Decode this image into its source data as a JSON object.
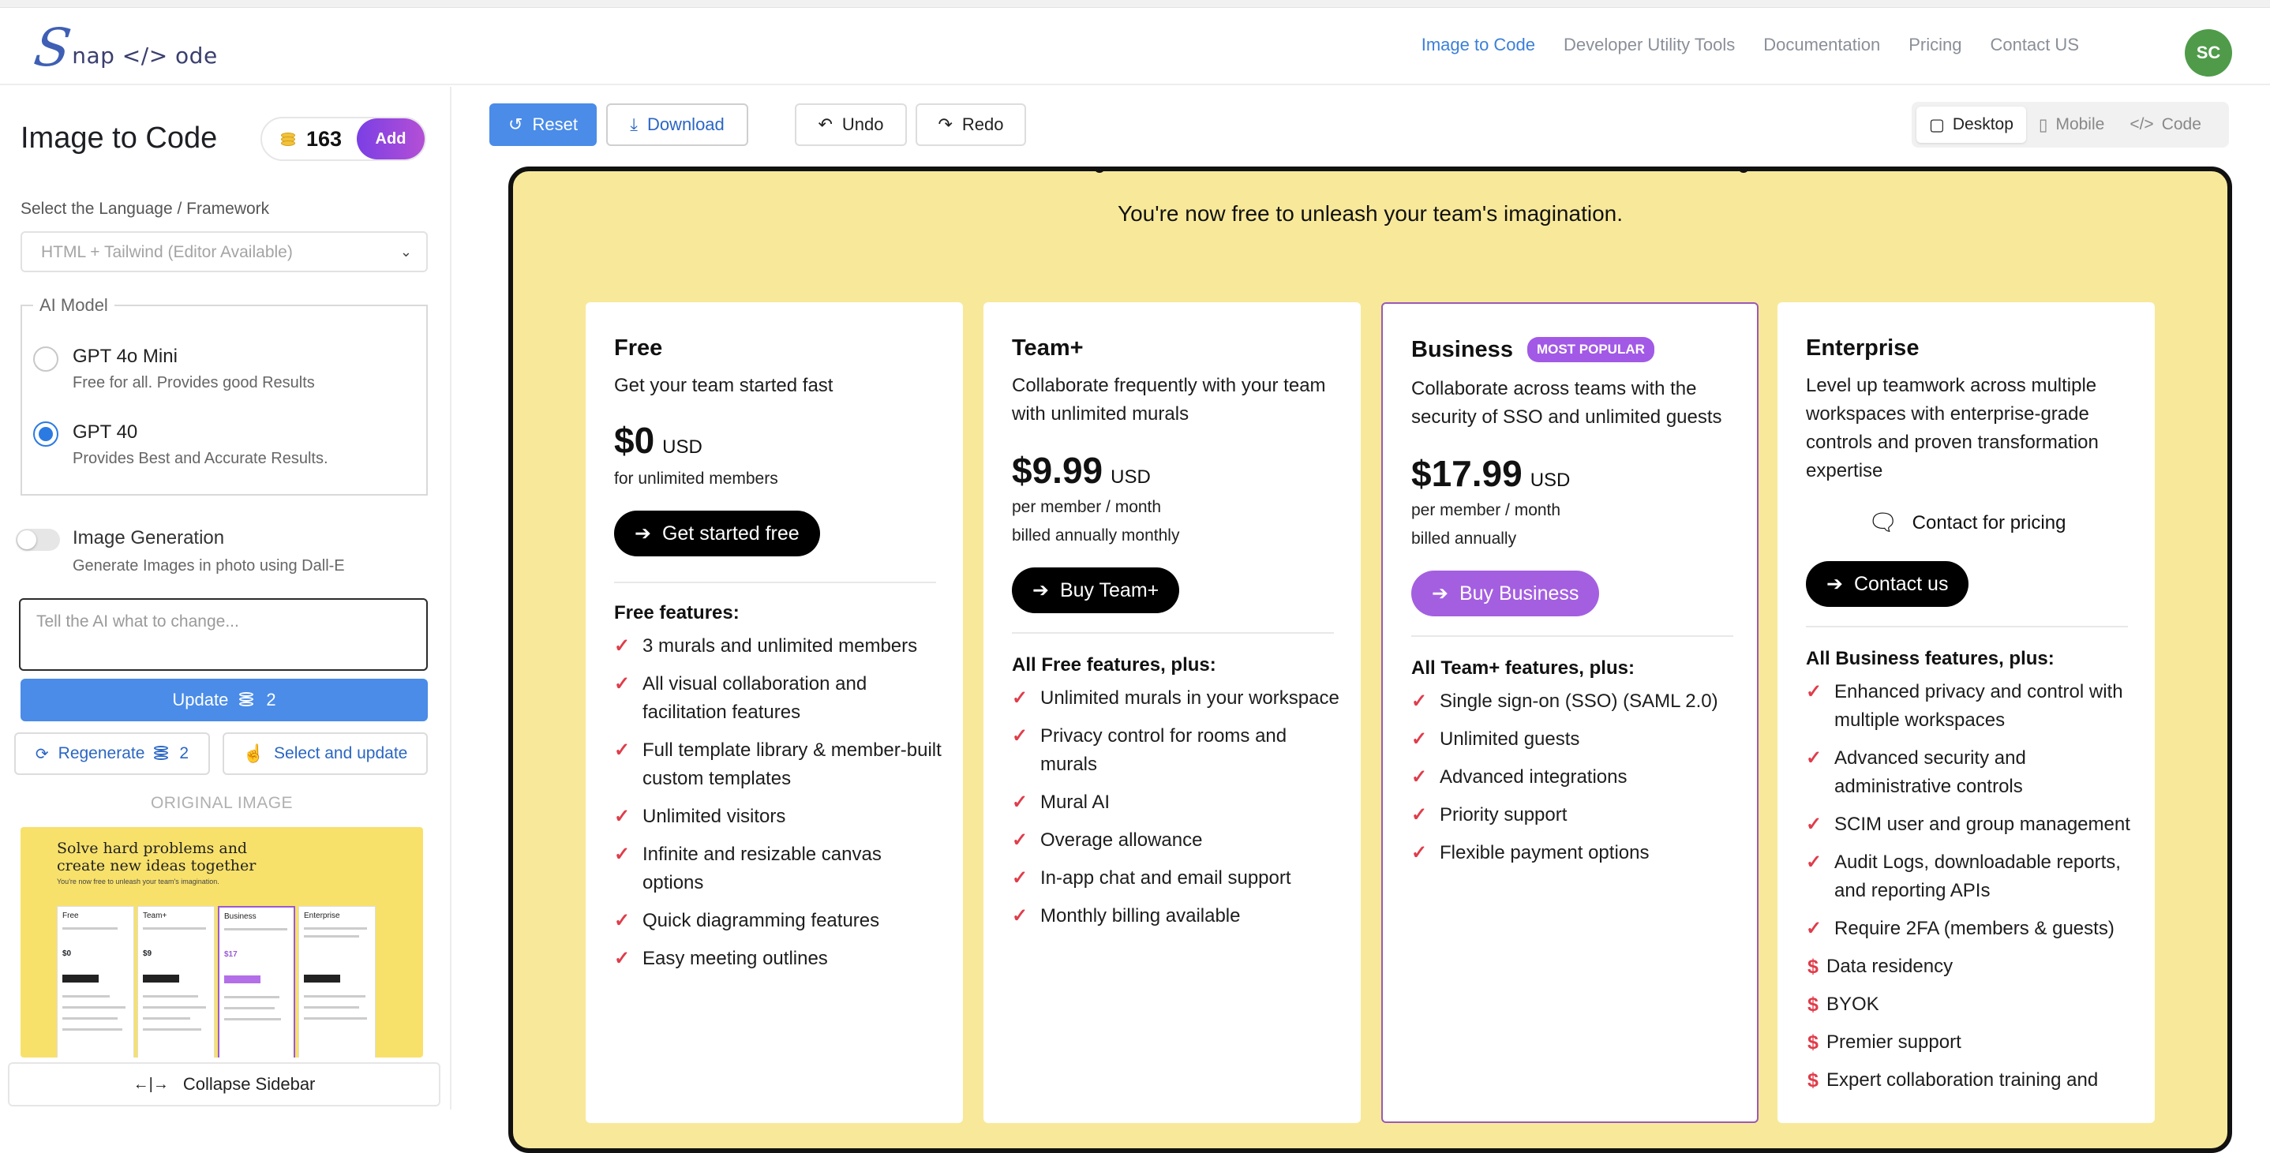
{
  "header": {
    "logo_mark": "S",
    "logo_rest": "nap </> ode",
    "nav": [
      "Image to Code",
      "Developer Utility Tools",
      "Documentation",
      "Pricing",
      "Contact US"
    ],
    "avatar_initials": "SC",
    "accent": "#3b7fd9"
  },
  "sidebar": {
    "title": "Image to Code",
    "credits": "163",
    "add_label": "Add",
    "language_label": "Select the Language / Framework",
    "language_value": "HTML + Tailwind (Editor Available)",
    "ai_model_legend": "AI Model",
    "models": [
      {
        "title": "GPT 4o Mini",
        "subtitle": "Free for all. Provides good Results",
        "selected": false
      },
      {
        "title": "GPT 40",
        "subtitle": "Provides Best and Accurate Results.",
        "selected": true
      }
    ],
    "image_generation_title": "Image Generation",
    "image_generation_sub": "Generate Images in photo using Dall-E",
    "prompt_placeholder": "Tell the AI what to change...",
    "update_label": "Update",
    "update_cost": "2",
    "regenerate_label": "Regenerate",
    "regenerate_cost": "2",
    "select_update_label": "Select and update",
    "original_image_label": "ORIGINAL IMAGE",
    "thumb_heading": "Solve hard problems and create new ideas together",
    "thumb_sub": "You're now free to unleash your team's imagination.",
    "thumb_cards": [
      "Free",
      "Team+",
      "Business",
      "Enterprise"
    ],
    "collapse_label": "Collapse Sidebar"
  },
  "toolbar": {
    "reset": "Reset",
    "download": "Download",
    "undo": "Undo",
    "redo": "Redo",
    "views": [
      "Desktop",
      "Mobile",
      "Code"
    ]
  },
  "preview": {
    "tagline": "You're now free to unleash your team's imagination.",
    "plans": [
      {
        "name": "Free",
        "desc": "Get your team started fast",
        "price": "$0",
        "currency": "USD",
        "price_note_1": "for unlimited members",
        "cta": "Get started free",
        "features_head": "Free features:",
        "features": [
          "3 murals and unlimited members",
          "All visual collaboration and facilitation features",
          "Full template library & member-built custom templates",
          "Unlimited visitors",
          "Infinite and resizable canvas options",
          "Quick diagramming features",
          "Easy meeting outlines"
        ]
      },
      {
        "name": "Team+",
        "desc": "Collaborate frequently with your team with unlimited murals",
        "price": "$9.99",
        "currency": "USD",
        "price_note_1": "per member / month",
        "price_note_2": "billed annually monthly",
        "cta": "Buy Team+",
        "features_head": "All Free features, plus:",
        "features": [
          "Unlimited murals in your workspace",
          "Privacy control for rooms and murals",
          "Mural AI",
          "Overage allowance",
          "In-app chat and email support",
          "Monthly billing available"
        ]
      },
      {
        "name": "Business",
        "badge": "MOST POPULAR",
        "desc": "Collaborate across teams with the security of SSO and unlimited guests",
        "price": "$17.99",
        "currency": "USD",
        "price_note_1": "per member / month",
        "price_note_2": "billed annually",
        "cta": "Buy Business",
        "features_head": "All Team+ features, plus:",
        "features": [
          "Single sign-on (SSO) (SAML 2.0)",
          "Unlimited guests",
          "Advanced integrations",
          "Priority support",
          "Flexible payment options"
        ]
      },
      {
        "name": "Enterprise",
        "desc": "Level up teamwork across multiple workspaces with enterprise-grade controls and proven transformation expertise",
        "contact_pricing": "Contact for pricing",
        "cta": "Contact us",
        "features_head": "All Business features, plus:",
        "features": [
          "Enhanced privacy and control with multiple workspaces",
          "Advanced security and administrative controls",
          "SCIM user and group management",
          "Audit Logs, downloadable reports, and reporting APIs",
          "Require 2FA (members & guests)"
        ],
        "paid_features": [
          "Data residency",
          "BYOK",
          "Premier support",
          "Expert collaboration training and"
        ]
      }
    ],
    "colors": {
      "background": "#f8e99a",
      "check": "#e03c4a",
      "popular": "#a259e6"
    }
  }
}
